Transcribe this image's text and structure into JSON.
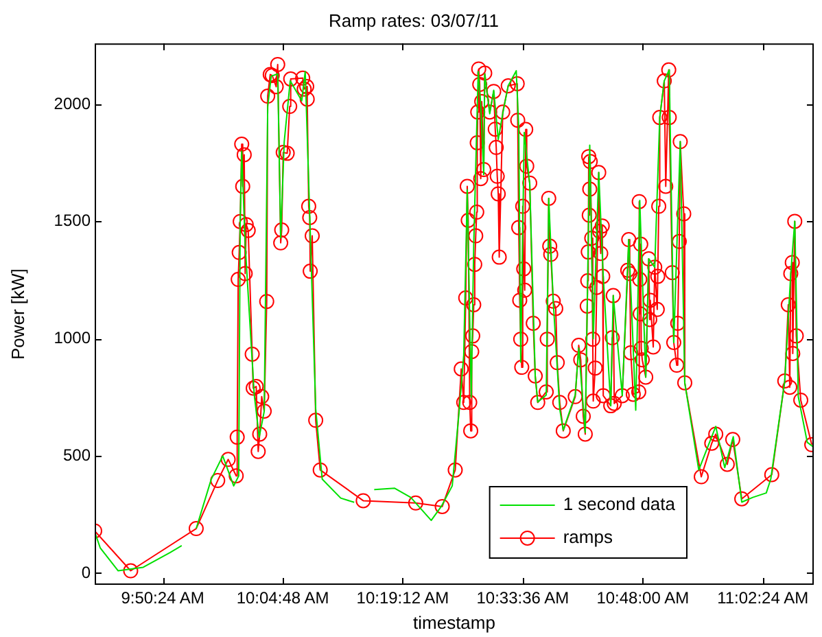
{
  "chart_data": {
    "type": "line",
    "title": "Ramp rates: 03/07/11",
    "xlabel": "timestamp",
    "ylabel": "Power [kW]",
    "xlim": [
      9.704,
      11.142
    ],
    "ylim": [
      -50,
      2260
    ],
    "xticks": [
      {
        "value": 9.84,
        "label": "9:50:24 AM"
      },
      {
        "value": 10.08,
        "label": "10:04:48 AM"
      },
      {
        "value": 10.32,
        "label": "10:19:12 AM"
      },
      {
        "value": 10.56,
        "label": "10:33:36 AM"
      },
      {
        "value": 10.8,
        "label": "10:48:00 AM"
      },
      {
        "value": 11.04,
        "label": "11:02:24 AM"
      }
    ],
    "yticks": [
      0,
      500,
      1000,
      1500,
      2000
    ],
    "grid": false,
    "legend": "bottom right",
    "series": [
      {
        "name": "1 second data",
        "color": "#00e000",
        "marker": "none",
        "x": [
          9.704,
          9.715,
          9.751,
          9.801,
          9.855,
          9.878,
          9.89,
          9.907,
          9.937,
          9.96,
          9.982,
          9.992,
          9.995,
          9.998,
          10.005,
          10.023,
          10.033,
          10.043,
          10.05,
          10.057,
          10.07,
          10.076,
          10.083,
          10.095,
          10.118,
          10.125,
          10.135,
          10.146,
          10.159,
          10.196,
          10.223,
          10.24,
          10.263,
          10.304,
          10.336,
          10.377,
          10.397,
          10.419,
          10.433,
          10.442,
          10.449,
          10.457,
          10.462,
          10.468,
          10.471,
          10.476,
          10.482,
          10.484,
          10.494,
          10.502,
          10.511,
          10.52,
          10.531,
          10.547,
          10.552,
          10.556,
          10.563,
          10.574,
          10.585,
          10.59,
          10.607,
          10.612,
          10.621,
          10.634,
          10.641,
          10.665,
          10.672,
          10.685,
          10.694,
          10.701,
          10.712,
          10.721,
          10.736,
          10.741,
          10.759,
          10.772,
          10.786,
          10.794,
          10.806,
          10.812,
          10.824,
          10.834,
          10.843,
          10.853,
          10.862,
          10.875,
          10.884,
          10.912,
          10.946,
          10.964,
          10.981,
          10.998,
          11.02,
          11.047,
          11.056,
          11.084,
          11.096,
          11.104,
          11.111,
          11.129,
          11.14
        ],
        "values": [
          176,
          108,
          10,
          25,
          88,
          117,
          null,
          190,
          400,
          500,
          372,
          415,
          1500,
          1800,
          1400,
          763,
          580,
          690,
          1990,
          2120,
          2130,
          1430,
          1840,
          2100,
          2015,
          2140,
          1460,
          700,
          401,
          320,
          302,
          null,
          356,
          362,
          323,
          225,
          284,
          372,
          695,
          930,
          1635,
          750,
          1400,
          1900,
          2140,
          2000,
          1700,
          2130,
          1960,
          2060,
          1850,
          1960,
          2080,
          2143,
          1900,
          900,
          1880,
          1660,
          840,
          730,
          760,
          1599,
          1160,
          700,
          610,
          760,
          960,
          600,
          1826,
          1000,
          1709,
          1266,
          714,
          1184,
          757,
          1423,
          695,
          1590,
          836,
          1341,
          1305,
          1944,
          2100,
          2147,
          984,
          1841,
          812,
          440,
          626,
          450,
          582,
          303,
          323,
          342,
          401,
          820,
          1278,
          1501,
          753,
          558,
          540
        ]
      },
      {
        "name": "ramps",
        "color": "#ff0000",
        "marker": "circle",
        "x": [
          9.704,
          9.776,
          9.907,
          9.95,
          9.971,
          9.987,
          9.989,
          9.991,
          9.993,
          9.995,
          9.998,
          10.0,
          10.003,
          10.005,
          10.007,
          10.011,
          10.019,
          10.021,
          10.027,
          10.031,
          10.034,
          10.038,
          10.043,
          10.048,
          10.05,
          10.055,
          10.059,
          10.067,
          10.07,
          10.076,
          10.078,
          10.081,
          10.089,
          10.094,
          10.096,
          10.12,
          10.123,
          10.128,
          10.129,
          10.132,
          10.134,
          10.135,
          10.139,
          10.146,
          10.155,
          10.241,
          10.346,
          10.399,
          10.425,
          10.437,
          10.442,
          10.446,
          10.449,
          10.451,
          10.454,
          10.456,
          10.458,
          10.46,
          10.462,
          10.464,
          10.466,
          10.468,
          10.469,
          10.47,
          10.472,
          10.474,
          10.476,
          10.478,
          10.482,
          10.484,
          10.494,
          10.502,
          10.505,
          10.507,
          10.509,
          10.511,
          10.513,
          10.52,
          10.531,
          10.549,
          10.55,
          10.552,
          10.554,
          10.556,
          10.558,
          10.56,
          10.562,
          10.564,
          10.566,
          10.568,
          10.574,
          10.581,
          10.585,
          10.59,
          10.607,
          10.609,
          10.612,
          10.614,
          10.616,
          10.621,
          10.626,
          10.629,
          10.634,
          10.641,
          10.665,
          10.672,
          10.676,
          10.681,
          10.685,
          10.689,
          10.69,
          10.691,
          10.692,
          10.693,
          10.694,
          10.695,
          10.698,
          10.7,
          10.701,
          10.705,
          10.708,
          10.712,
          10.714,
          10.716,
          10.719,
          10.72,
          10.721,
          10.736,
          10.739,
          10.741,
          10.743,
          10.759,
          10.77,
          10.772,
          10.774,
          10.776,
          10.781,
          10.792,
          10.793,
          10.794,
          10.795,
          10.796,
          10.797,
          10.799,
          10.806,
          10.812,
          10.814,
          10.815,
          10.821,
          10.824,
          10.829,
          10.83,
          10.832,
          10.834,
          10.843,
          10.846,
          10.852,
          10.853,
          10.859,
          10.862,
          10.868,
          10.87,
          10.873,
          10.875,
          10.882,
          10.884,
          10.917,
          10.938,
          10.946,
          10.969,
          10.98,
          10.998,
          11.058,
          11.084,
          11.091,
          11.094,
          11.096,
          11.099,
          11.1,
          11.104,
          11.107,
          11.116,
          11.138
        ],
        "values": [
          180,
          10,
          190,
          395,
          485,
          415,
          580,
          1253,
          1368,
          1500,
          1830,
          1650,
          1785,
          1278,
          1487,
          1462,
          934,
          789,
          796,
          519,
          593,
          753,
          691,
          1159,
          2035,
          2127,
          2123,
          2075,
          2170,
          1409,
          1464,
          1795,
          1791,
          1991,
          2108,
          2112,
          2065,
          2076,
          2022,
          1565,
          1517,
          1288,
          1439,
          652,
          440,
          309,
          299,
          284,
          440,
          871,
          728,
          1174,
          1650,
          1505,
          728,
          607,
          945,
          1012,
          1145,
          1317,
          1439,
          1540,
          1836,
          1967,
          2151,
          2085,
          1683,
          2012,
          1722,
          2133,
          1967,
          2055,
          1894,
          1816,
          1693,
          1618,
          1348,
          1967,
          2079,
          2088,
          1932,
          1474,
          1164,
          998,
          878,
          1565,
          1298,
          1207,
          1893,
          1736,
          1664,
          1066,
          841,
          728,
          773,
          998,
          1599,
          1395,
          1360,
          1160,
          1129,
          898,
          728,
          607,
          753,
          972,
          910,
          669,
          593,
          1139,
          1247,
          1370,
          1777,
          1527,
          1638,
          1756,
          1429,
          998,
          734,
          875,
          1219,
          1709,
          1458,
          1364,
          1481,
          1266,
          757,
          714,
          1004,
          1184,
          724,
          757,
          1292,
          1423,
          1278,
          940,
          763,
          773,
          1585,
          1253,
          1106,
          1403,
          959,
          910,
          836,
          1341,
          1082,
          1164,
          965,
          1305,
          1125,
          1266,
          1565,
          1944,
          2100,
          1650,
          2147,
          1944,
          1282,
          984,
          887,
          1066,
          1415,
          1841,
          1533,
          812,
          411,
          554,
          593,
          464,
          570,
          317,
          420,
          820,
          1145,
          793,
          1278,
          1325,
          937,
          1501,
          1012,
          738,
          548
        ]
      }
    ]
  }
}
